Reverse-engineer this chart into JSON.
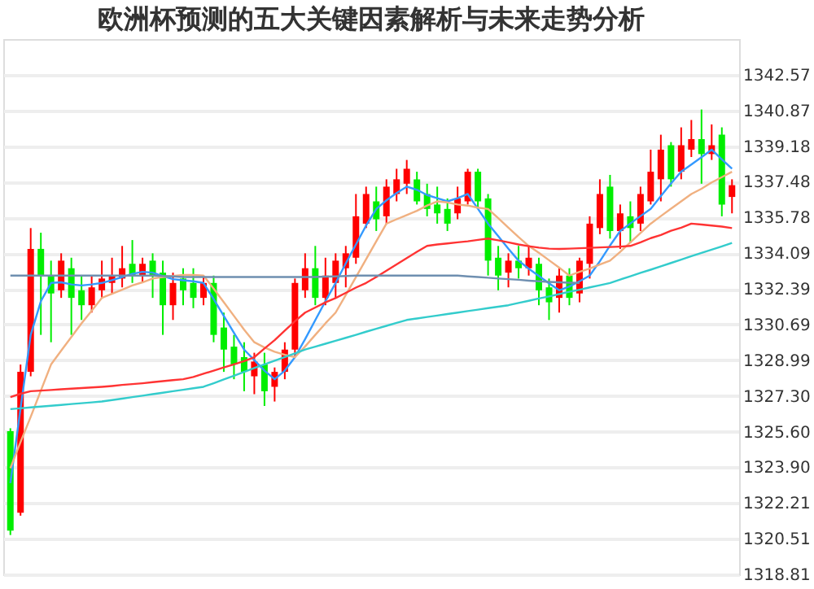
{
  "chart_data": {
    "type": "candlestick",
    "title": "欧洲杯预测的五大关键因素解析与未来走势分析",
    "categories": [
      null,
      null,
      null,
      null,
      null,
      null,
      null,
      null,
      null,
      null,
      null,
      null,
      null,
      null,
      null,
      null,
      null,
      null,
      null,
      null,
      null,
      null,
      null,
      null,
      null,
      null,
      null,
      null,
      null,
      null,
      null,
      null,
      null,
      null,
      null,
      null,
      null,
      null,
      null,
      null,
      null,
      null,
      null,
      null,
      null,
      null,
      null,
      null,
      null,
      null,
      null,
      null,
      null,
      null,
      null,
      null,
      null,
      null,
      null,
      null,
      null,
      null,
      null,
      null,
      null,
      null,
      null,
      null,
      null,
      null,
      null,
      null
    ],
    "ohlc": [
      [
        1325.62,
        1325.76,
        1320.68,
        1320.89
      ],
      [
        1321.74,
        1328.79,
        1321.6,
        1328.44
      ],
      [
        1328.44,
        1335.28,
        1328.23,
        1334.29
      ],
      [
        1334.29,
        1335.06,
        1330.2,
        1333.02
      ],
      [
        1333.02,
        1333.73,
        1329.85,
        1332.17
      ],
      [
        1332.32,
        1334.08,
        1331.96,
        1333.73
      ],
      [
        1333.37,
        1333.87,
        1330.2,
        1331.96
      ],
      [
        1332.32,
        1333.02,
        1330.91,
        1331.61
      ],
      [
        1331.61,
        1333.02,
        1331.26,
        1332.46
      ],
      [
        1332.32,
        1333.73,
        1331.96,
        1332.88
      ],
      [
        1332.67,
        1333.87,
        1332.17,
        1333.02
      ],
      [
        1332.88,
        1334.43,
        1332.46,
        1333.37
      ],
      [
        1333.58,
        1334.71,
        1332.67,
        1333.02
      ],
      [
        1333.02,
        1333.87,
        1332.67,
        1333.58
      ],
      [
        1333.73,
        1334.08,
        1331.96,
        1333.02
      ],
      [
        1333.16,
        1333.73,
        1330.2,
        1331.61
      ],
      [
        1331.61,
        1333.16,
        1330.91,
        1332.67
      ],
      [
        1332.88,
        1333.37,
        1331.61,
        1332.32
      ],
      [
        1332.67,
        1333.37,
        1331.47,
        1331.96
      ],
      [
        1331.96,
        1333.02,
        1331.61,
        1332.67
      ],
      [
        1332.67,
        1333.02,
        1329.85,
        1330.2
      ],
      [
        1330.55,
        1331.26,
        1328.44,
        1329.5
      ],
      [
        1329.64,
        1330.2,
        1328.09,
        1328.79
      ],
      [
        1329.14,
        1329.85,
        1327.52,
        1328.44
      ],
      [
        1328.23,
        1329.35,
        1327.38,
        1328.93
      ],
      [
        1328.79,
        1329.35,
        1326.82,
        1327.52
      ],
      [
        1327.73,
        1328.65,
        1327.03,
        1328.44
      ],
      [
        1328.44,
        1329.85,
        1328.09,
        1329.5
      ],
      [
        1329.5,
        1332.88,
        1329.14,
        1332.67
      ],
      [
        1332.32,
        1334.08,
        1331.96,
        1333.37
      ],
      [
        1333.37,
        1334.43,
        1331.61,
        1331.96
      ],
      [
        1331.96,
        1333.87,
        1331.61,
        1333.02
      ],
      [
        1332.67,
        1334.08,
        1331.96,
        1333.73
      ],
      [
        1333.37,
        1334.43,
        1332.46,
        1334.08
      ],
      [
        1333.87,
        1336.9,
        1333.58,
        1335.84
      ],
      [
        1335.49,
        1337.25,
        1335.28,
        1336.9
      ],
      [
        1336.55,
        1337.25,
        1335.14,
        1335.7
      ],
      [
        1335.84,
        1337.6,
        1335.49,
        1337.25
      ],
      [
        1336.9,
        1338.1,
        1336.55,
        1337.6
      ],
      [
        1337.39,
        1338.52,
        1336.9,
        1338.1
      ],
      [
        1337.6,
        1337.96,
        1336.4,
        1336.55
      ],
      [
        1336.9,
        1337.39,
        1335.84,
        1336.19
      ],
      [
        1336.4,
        1337.25,
        1335.49,
        1335.98
      ],
      [
        1336.19,
        1336.69,
        1335.14,
        1335.49
      ],
      [
        1335.98,
        1337.25,
        1335.7,
        1336.69
      ],
      [
        1336.55,
        1338.1,
        1336.4,
        1337.96
      ],
      [
        1337.96,
        1338.1,
        1336.19,
        1336.55
      ],
      [
        1336.69,
        1336.9,
        1333.02,
        1333.73
      ],
      [
        1333.87,
        1334.43,
        1332.32,
        1333.02
      ],
      [
        1333.16,
        1334.08,
        1332.46,
        1333.73
      ],
      [
        1333.73,
        1334.43,
        1332.88,
        1333.37
      ],
      [
        1333.37,
        1334.43,
        1333.02,
        1333.87
      ],
      [
        1333.58,
        1333.87,
        1331.61,
        1332.32
      ],
      [
        1332.46,
        1332.88,
        1330.91,
        1331.75
      ],
      [
        1331.96,
        1333.37,
        1331.26,
        1333.02
      ],
      [
        1333.02,
        1333.37,
        1331.61,
        1331.96
      ],
      [
        1332.17,
        1333.87,
        1331.75,
        1333.73
      ],
      [
        1333.58,
        1335.84,
        1332.88,
        1335.49
      ],
      [
        1335.28,
        1337.6,
        1334.99,
        1336.9
      ],
      [
        1337.25,
        1337.81,
        1334.78,
        1335.14
      ],
      [
        1335.14,
        1336.4,
        1334.29,
        1335.98
      ],
      [
        1335.84,
        1336.55,
        1334.57,
        1335.28
      ],
      [
        1335.49,
        1337.25,
        1335.14,
        1336.9
      ],
      [
        1336.55,
        1339.01,
        1336.4,
        1337.96
      ],
      [
        1337.6,
        1339.72,
        1336.55,
        1339.01
      ],
      [
        1339.22,
        1339.37,
        1337.25,
        1337.6
      ],
      [
        1337.96,
        1340.07,
        1337.6,
        1339.22
      ],
      [
        1339.01,
        1340.42,
        1338.66,
        1339.51
      ],
      [
        1339.51,
        1340.92,
        1337.39,
        1338.8
      ],
      [
        1338.8,
        1340.21,
        1338.52,
        1339.22
      ],
      [
        1339.72,
        1340.07,
        1335.84,
        1336.4
      ],
      [
        1336.76,
        1337.6,
        1335.98,
        1337.32
      ]
    ],
    "colors": [
      "#00ee00",
      "#ff0000",
      "#ff0000",
      "#00ee00",
      "#00ee00",
      "#ff0000",
      "#00ee00",
      "#00ee00",
      "#ff0000",
      "#ff0000",
      "#ff0000",
      "#ff0000",
      "#00ee00",
      "#ff0000",
      "#00ee00",
      "#00ee00",
      "#ff0000",
      "#00ee00",
      "#00ee00",
      "#ff0000",
      "#00ee00",
      "#00ee00",
      "#00ee00",
      "#00ee00",
      "#ff0000",
      "#00ee00",
      "#ff0000",
      "#ff0000",
      "#ff0000",
      "#ff0000",
      "#00ee00",
      "#ff0000",
      "#ff0000",
      "#ff0000",
      "#ff0000",
      "#ff0000",
      "#00ee00",
      "#ff0000",
      "#ff0000",
      "#ff0000",
      "#00ee00",
      "#00ee00",
      "#00ee00",
      "#00ee00",
      "#ff0000",
      "#ff0000",
      "#00ee00",
      "#00ee00",
      "#00ee00",
      "#ff0000",
      "#00ee00",
      "#ff0000",
      "#00ee00",
      "#00ee00",
      "#ff0000",
      "#00ee00",
      "#ff0000",
      "#ff0000",
      "#ff0000",
      "#00ee00",
      "#ff0000",
      "#00ee00",
      "#ff0000",
      "#ff0000",
      "#ff0000",
      "#00ee00",
      "#ff0000",
      "#ff0000",
      "#00ee00",
      "#ff0000",
      "#00ee00",
      "#ff0000"
    ],
    "series": [
      {
        "type": "line",
        "color": "#3399ff",
        "values": [
          1323.15,
          1326.7,
          1330.2,
          1331.8,
          1332.67,
          1332.7,
          1332.6,
          1332.55,
          1332.6,
          1332.67,
          1332.8,
          1332.95,
          1333.1,
          1333.2,
          1333.16,
          1333.0,
          1332.85,
          1332.8,
          1332.75,
          1332.67,
          1331.9,
          1331.1,
          1330.3,
          1329.5,
          1329.0,
          1328.5,
          1328.09,
          1328.5,
          1329.14,
          1330.0,
          1330.9,
          1331.8,
          1332.67,
          1333.6,
          1334.5,
          1335.4,
          1336.19,
          1336.6,
          1336.95,
          1337.25,
          1337.1,
          1336.85,
          1336.7,
          1336.55,
          1336.7,
          1336.9,
          1336.2,
          1335.49,
          1334.9,
          1334.3,
          1333.73,
          1333.35,
          1333.0,
          1332.65,
          1332.32,
          1332.5,
          1332.75,
          1333.02,
          1333.7,
          1334.45,
          1335.14,
          1335.5,
          1335.85,
          1336.19,
          1336.8,
          1337.4,
          1337.96,
          1338.3,
          1338.65,
          1339.01,
          1338.55,
          1338.1
        ]
      },
      {
        "type": "line",
        "color": "#f0b080",
        "values": [
          1323.86,
          1325.1,
          1326.3,
          1327.55,
          1328.79,
          1329.45,
          1330.1,
          1330.75,
          1331.35,
          1331.96,
          1332.15,
          1332.35,
          1332.55,
          1332.7,
          1332.88,
          1332.95,
          1333.0,
          1333.05,
          1333.05,
          1333.02,
          1332.4,
          1331.75,
          1331.1,
          1330.45,
          1329.85,
          1329.6,
          1329.4,
          1329.25,
          1329.14,
          1329.65,
          1330.2,
          1330.75,
          1331.26,
          1332.1,
          1332.95,
          1333.8,
          1334.65,
          1335.49,
          1335.7,
          1335.9,
          1336.1,
          1336.35,
          1336.55,
          1336.5,
          1336.4,
          1336.35,
          1336.25,
          1336.19,
          1335.75,
          1335.3,
          1334.85,
          1334.43,
          1334.1,
          1333.75,
          1333.4,
          1333.02,
          1333.2,
          1333.35,
          1333.55,
          1333.73,
          1334.15,
          1334.6,
          1335.05,
          1335.49,
          1335.85,
          1336.2,
          1336.55,
          1336.9,
          1337.15,
          1337.45,
          1337.7,
          1337.96
        ]
      },
      {
        "type": "line",
        "color": "#ff3333",
        "values": [
          1327.24,
          1327.4,
          1327.52,
          1327.55,
          1327.58,
          1327.61,
          1327.64,
          1327.67,
          1327.7,
          1327.73,
          1327.77,
          1327.82,
          1327.86,
          1327.9,
          1327.95,
          1328.0,
          1328.05,
          1328.09,
          1328.2,
          1328.35,
          1328.5,
          1328.65,
          1328.8,
          1328.95,
          1329.14,
          1329.55,
          1329.95,
          1330.4,
          1330.85,
          1331.26,
          1331.5,
          1331.75,
          1331.95,
          1332.2,
          1332.45,
          1332.67,
          1332.95,
          1333.25,
          1333.55,
          1333.85,
          1334.15,
          1334.43,
          1334.5,
          1334.55,
          1334.6,
          1334.65,
          1334.72,
          1334.78,
          1334.7,
          1334.6,
          1334.5,
          1334.42,
          1334.35,
          1334.3,
          1334.29,
          1334.3,
          1334.32,
          1334.34,
          1334.36,
          1334.38,
          1334.4,
          1334.43,
          1334.6,
          1334.8,
          1334.95,
          1335.15,
          1335.3,
          1335.49,
          1335.45,
          1335.4,
          1335.35,
          1335.28
        ]
      },
      {
        "type": "line",
        "color": "#33cccc",
        "values": [
          1326.67,
          1326.71,
          1326.75,
          1326.79,
          1326.83,
          1326.87,
          1326.91,
          1326.95,
          1326.99,
          1327.03,
          1327.1,
          1327.17,
          1327.24,
          1327.31,
          1327.38,
          1327.45,
          1327.52,
          1327.59,
          1327.66,
          1327.73,
          1327.9,
          1328.08,
          1328.26,
          1328.44,
          1328.62,
          1328.8,
          1328.97,
          1329.15,
          1329.32,
          1329.5,
          1329.64,
          1329.78,
          1329.92,
          1330.06,
          1330.2,
          1330.35,
          1330.49,
          1330.63,
          1330.77,
          1330.91,
          1330.98,
          1331.05,
          1331.12,
          1331.19,
          1331.26,
          1331.33,
          1331.4,
          1331.47,
          1331.54,
          1331.61,
          1331.72,
          1331.82,
          1331.93,
          1332.03,
          1332.14,
          1332.25,
          1332.35,
          1332.46,
          1332.56,
          1332.67,
          1332.83,
          1332.99,
          1333.15,
          1333.3,
          1333.46,
          1333.62,
          1333.78,
          1333.94,
          1334.1,
          1334.25,
          1334.41,
          1334.57
        ]
      },
      {
        "type": "line",
        "color": "#6f8fb0",
        "values": [
          1333.02,
          1333.02,
          1333.02,
          1333.02,
          1333.02,
          1333.02,
          1333.02,
          1333.02,
          1333.02,
          1333.02,
          1333.02,
          1333.02,
          1333.02,
          1333.02,
          1333.02,
          1333.0,
          1332.98,
          1332.95,
          1332.95,
          1332.95,
          1332.95,
          1332.95,
          1332.95,
          1332.95,
          1332.95,
          1332.95,
          1332.95,
          1332.95,
          1332.95,
          1332.95,
          1332.95,
          1332.97,
          1332.98,
          1333.0,
          1333.02,
          1333.02,
          1333.02,
          1333.02,
          1333.02,
          1333.02,
          1333.02,
          1333.02,
          1333.02,
          1333.02,
          1333.02,
          1332.98,
          1332.95,
          1332.92,
          1332.88,
          1332.85,
          1332.82,
          1332.78,
          1332.75,
          1332.72,
          1332.7,
          1332.68,
          1332.67,
          null,
          null,
          null,
          null,
          null,
          null,
          null,
          null,
          null,
          null,
          null,
          null,
          null,
          null,
          null
        ]
      }
    ],
    "ylim": [
      1318.81,
      1344.27
    ],
    "yticks": [
      1318.81,
      1320.51,
      1322.21,
      {
        "value": 1323.9,
        "label": "1323.90"
      },
      {
        "value": 1325.6,
        "label": "1325.60"
      },
      {
        "value": 1327.3,
        "label": "1327.30"
      },
      1328.99,
      1330.69,
      1332.39,
      1334.09,
      1335.78,
      1337.48,
      1339.18,
      1340.87,
      1342.57
    ],
    "grid": "y",
    "tick_labels": "y"
  }
}
